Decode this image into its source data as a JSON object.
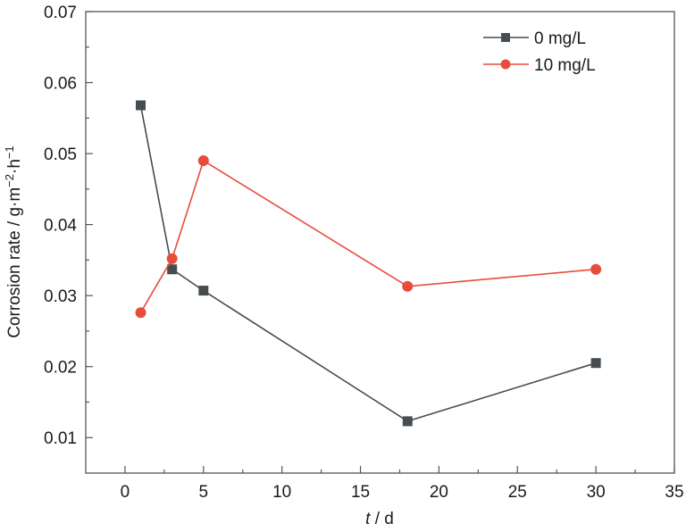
{
  "chart_data": {
    "type": "line",
    "title": "",
    "xlabel_italic": "t",
    "xlabel_rest": " / d",
    "ylabel_main": "Corrosion rate / g·m",
    "ylabel_sup1": "−2",
    "ylabel_mid": "·h",
    "ylabel_sup2": "−1",
    "xlim": [
      -2.5,
      35
    ],
    "ylim": [
      0.005,
      0.07
    ],
    "xticks": [
      0,
      5,
      10,
      15,
      20,
      25,
      30,
      35
    ],
    "xtick_labels": [
      "0",
      "5",
      "10",
      "15",
      "20",
      "25",
      "30",
      "35"
    ],
    "xminor": [
      2.5,
      7.5,
      12.5,
      17.5,
      22.5,
      27.5,
      32.5
    ],
    "yticks": [
      0.01,
      0.02,
      0.03,
      0.04,
      0.05,
      0.06,
      0.07
    ],
    "ytick_labels": [
      "0.01",
      "0.02",
      "0.03",
      "0.04",
      "0.05",
      "0.06",
      "0.07"
    ],
    "yminor": [
      0.015,
      0.025,
      0.035,
      0.045,
      0.055,
      0.065
    ],
    "grid": false,
    "legend_position": "top-right",
    "series": [
      {
        "name": "0 mg/L",
        "marker": "square",
        "color": "#464c50",
        "x": [
          1,
          3,
          5,
          18,
          30
        ],
        "y": [
          0.0568,
          0.0337,
          0.0307,
          0.0123,
          0.0205
        ]
      },
      {
        "name": "10 mg/L",
        "marker": "circle",
        "color": "#e84c3d",
        "x": [
          1,
          3,
          5,
          18,
          30
        ],
        "y": [
          0.0276,
          0.0352,
          0.049,
          0.0313,
          0.0337
        ]
      }
    ]
  }
}
